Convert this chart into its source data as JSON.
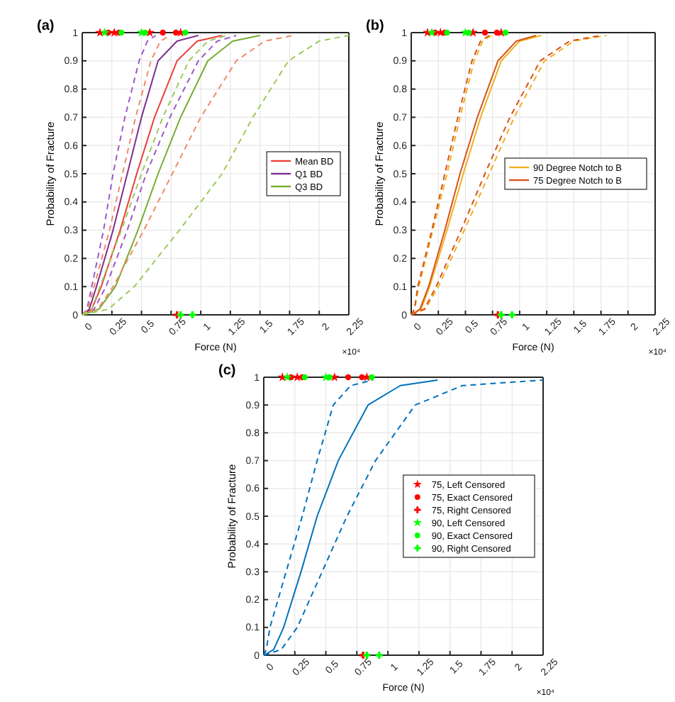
{
  "chart_data": [
    {
      "type": "line",
      "title": "(a)",
      "xlabel": "Force (N)",
      "ylabel": "Probability of Fracture",
      "annotations": [
        "×10⁴"
      ],
      "xlim": [
        0,
        2.25
      ],
      "xticks": [
        0,
        0.25,
        0.5,
        0.75,
        1,
        1.25,
        1.5,
        1.75,
        2,
        2.25
      ],
      "ylim": [
        0,
        1
      ],
      "yticks": [
        0,
        0.1,
        0.2,
        0.3,
        0.4,
        0.5,
        0.6,
        0.7,
        0.8,
        0.9,
        1
      ],
      "grid": true,
      "legend": "right",
      "series": [
        {
          "name": "Mean BD",
          "color": "#e8413c",
          "line_style": "solid",
          "x": [
            0,
            0.08,
            0.16,
            0.32,
            0.46,
            0.61,
            0.8,
            0.97,
            1.18
          ],
          "values": [
            0,
            0.02,
            0.1,
            0.3,
            0.5,
            0.7,
            0.9,
            0.97,
            0.99
          ]
        },
        {
          "name": "Q1 BD",
          "color": "#7e2f8e",
          "line_style": "solid",
          "x": [
            0,
            0.06,
            0.12,
            0.26,
            0.38,
            0.5,
            0.64,
            0.8,
            0.98
          ],
          "values": [
            0,
            0.02,
            0.1,
            0.3,
            0.5,
            0.7,
            0.9,
            0.97,
            0.99
          ]
        },
        {
          "name": "Q3 BD",
          "color": "#77ac30",
          "line_style": "solid",
          "x": [
            0,
            0.14,
            0.28,
            0.47,
            0.64,
            0.83,
            1.06,
            1.27,
            1.5
          ],
          "values": [
            0,
            0.02,
            0.1,
            0.3,
            0.5,
            0.7,
            0.9,
            0.97,
            0.99
          ]
        },
        {
          "color": "#9b59c9",
          "line_style": "dashed",
          "x": [
            0,
            0.04,
            0.08,
            0.18,
            0.26,
            0.36,
            0.48,
            0.55,
            0.62
          ],
          "values": [
            0,
            0.02,
            0.1,
            0.3,
            0.5,
            0.7,
            0.9,
            0.97,
            0.99
          ]
        },
        {
          "color": "#9b59c9",
          "line_style": "dashed",
          "x": [
            0,
            0.1,
            0.2,
            0.38,
            0.54,
            0.74,
            0.98,
            1.14,
            1.3
          ],
          "values": [
            0,
            0.02,
            0.1,
            0.3,
            0.5,
            0.7,
            0.9,
            0.97,
            0.99
          ]
        },
        {
          "color": "#f08a6a",
          "line_style": "dashed",
          "x": [
            0,
            0.05,
            0.1,
            0.23,
            0.34,
            0.45,
            0.58,
            0.66,
            0.74
          ],
          "values": [
            0,
            0.02,
            0.1,
            0.3,
            0.5,
            0.7,
            0.9,
            0.97,
            0.99
          ]
        },
        {
          "color": "#f08a6a",
          "line_style": "dashed",
          "x": [
            0,
            0.13,
            0.26,
            0.52,
            0.76,
            1.0,
            1.3,
            1.54,
            1.78
          ],
          "values": [
            0,
            0.02,
            0.1,
            0.3,
            0.5,
            0.7,
            0.9,
            0.97,
            0.99
          ]
        },
        {
          "color": "#9cc95a",
          "line_style": "dashed",
          "x": [
            0,
            0.08,
            0.15,
            0.33,
            0.5,
            0.68,
            0.9,
            1.06,
            1.22
          ],
          "values": [
            0,
            0.02,
            0.1,
            0.3,
            0.5,
            0.7,
            0.9,
            0.97,
            0.99
          ]
        },
        {
          "color": "#9cc95a",
          "line_style": "dashed",
          "x": [
            0,
            0.22,
            0.44,
            0.82,
            1.18,
            1.44,
            1.74,
            2.0,
            2.25
          ],
          "values": [
            0,
            0.02,
            0.1,
            0.3,
            0.5,
            0.7,
            0.9,
            0.97,
            0.99
          ]
        },
        {
          "type": "scatter",
          "color": "#ff0000",
          "marker": "star",
          "x": [
            0.15,
            0.27,
            0.57,
            0.83
          ],
          "values": [
            1,
            1,
            1,
            1
          ]
        },
        {
          "type": "scatter",
          "color": "#ff0000",
          "marker": "circle",
          "x": [
            0.22,
            0.31,
            0.68,
            0.79
          ],
          "values": [
            1,
            1,
            1,
            1
          ]
        },
        {
          "type": "scatter",
          "color": "#ff0000",
          "marker": "cross",
          "x": [
            0.8
          ],
          "values": [
            0
          ]
        },
        {
          "type": "scatter",
          "color": "#00ff00",
          "marker": "star",
          "x": [
            0.19,
            0.5
          ],
          "values": [
            1,
            1
          ]
        },
        {
          "type": "scatter",
          "color": "#00ff00",
          "marker": "circle",
          "x": [
            0.33,
            0.53,
            0.87
          ],
          "values": [
            1,
            1,
            1
          ]
        },
        {
          "type": "scatter",
          "color": "#00ff00",
          "marker": "cross",
          "x": [
            0.83,
            0.93
          ],
          "values": [
            0,
            0
          ]
        }
      ]
    },
    {
      "type": "line",
      "title": "(b)",
      "xlabel": "Force (N)",
      "ylabel": "Probability of Fracture",
      "annotations": [
        "×10⁴"
      ],
      "xlim": [
        0,
        2.25
      ],
      "xticks": [
        0,
        0.25,
        0.5,
        0.75,
        1,
        1.25,
        1.5,
        1.75,
        2,
        2.25
      ],
      "ylim": [
        0,
        1
      ],
      "yticks": [
        0,
        0.1,
        0.2,
        0.3,
        0.4,
        0.5,
        0.6,
        0.7,
        0.8,
        0.9,
        1
      ],
      "grid": true,
      "legend": "right",
      "series": [
        {
          "name": "90 Degree Notch to B",
          "color": "#edb120",
          "line_style": "solid",
          "x": [
            0,
            0.09,
            0.17,
            0.33,
            0.48,
            0.64,
            0.83,
            1.0,
            1.2
          ],
          "values": [
            0,
            0.02,
            0.1,
            0.3,
            0.5,
            0.7,
            0.9,
            0.97,
            0.99
          ]
        },
        {
          "name": "75 Degree Notch to B",
          "color": "#d95319",
          "line_style": "solid",
          "x": [
            0,
            0.08,
            0.16,
            0.31,
            0.45,
            0.61,
            0.8,
            0.97,
            1.15
          ],
          "values": [
            0,
            0.02,
            0.1,
            0.3,
            0.5,
            0.7,
            0.9,
            0.97,
            0.99
          ]
        },
        {
          "color": "#edb120",
          "line_style": "dashed",
          "x": [
            0,
            0.03,
            0.07,
            0.2,
            0.33,
            0.45,
            0.58,
            0.66,
            0.74
          ],
          "values": [
            0,
            0.02,
            0.1,
            0.3,
            0.5,
            0.7,
            0.9,
            0.97,
            0.99
          ]
        },
        {
          "color": "#d95319",
          "line_style": "dashed",
          "x": [
            0,
            0.03,
            0.06,
            0.19,
            0.31,
            0.43,
            0.56,
            0.64,
            0.72
          ],
          "values": [
            0,
            0.02,
            0.1,
            0.3,
            0.5,
            0.7,
            0.9,
            0.97,
            0.99
          ]
        },
        {
          "color": "#edb120",
          "line_style": "dashed",
          "x": [
            0,
            0.13,
            0.25,
            0.49,
            0.72,
            0.95,
            1.23,
            1.5,
            1.8
          ],
          "values": [
            0,
            0.02,
            0.1,
            0.3,
            0.5,
            0.7,
            0.9,
            0.97,
            0.99
          ]
        },
        {
          "color": "#d95319",
          "line_style": "dashed",
          "x": [
            0,
            0.12,
            0.23,
            0.46,
            0.68,
            0.91,
            1.19,
            1.46,
            1.75
          ],
          "values": [
            0,
            0.02,
            0.1,
            0.3,
            0.5,
            0.7,
            0.9,
            0.97,
            0.99
          ]
        },
        {
          "type": "scatter",
          "color": "#ff0000",
          "marker": "star",
          "x": [
            0.15,
            0.27,
            0.57,
            0.83
          ],
          "values": [
            1,
            1,
            1,
            1
          ]
        },
        {
          "type": "scatter",
          "color": "#ff0000",
          "marker": "circle",
          "x": [
            0.22,
            0.31,
            0.68,
            0.79
          ],
          "values": [
            1,
            1,
            1,
            1
          ]
        },
        {
          "type": "scatter",
          "color": "#ff0000",
          "marker": "cross",
          "x": [
            0.8
          ],
          "values": [
            0
          ]
        },
        {
          "type": "scatter",
          "color": "#00ff00",
          "marker": "star",
          "x": [
            0.19,
            0.5
          ],
          "values": [
            1,
            1
          ]
        },
        {
          "type": "scatter",
          "color": "#00ff00",
          "marker": "circle",
          "x": [
            0.33,
            0.53,
            0.87
          ],
          "values": [
            1,
            1,
            1
          ]
        },
        {
          "type": "scatter",
          "color": "#00ff00",
          "marker": "cross",
          "x": [
            0.83,
            0.93
          ],
          "values": [
            0,
            0
          ]
        }
      ]
    },
    {
      "type": "line",
      "title": "(c)",
      "xlabel": "Force (N)",
      "ylabel": "Probability of Fracture",
      "annotations": [
        "×10⁴"
      ],
      "xlim": [
        0,
        2.25
      ],
      "xticks": [
        0,
        0.25,
        0.5,
        0.75,
        1,
        1.25,
        1.5,
        1.75,
        2,
        2.25
      ],
      "ylim": [
        0,
        1
      ],
      "yticks": [
        0,
        0.1,
        0.2,
        0.3,
        0.4,
        0.5,
        0.6,
        0.7,
        0.8,
        0.9,
        1
      ],
      "grid": true,
      "legend": "right",
      "series": [
        {
          "color": "#0072bd",
          "line_style": "solid",
          "x": [
            0,
            0.08,
            0.16,
            0.3,
            0.43,
            0.6,
            0.84,
            1.1,
            1.4
          ],
          "values": [
            0,
            0.02,
            0.1,
            0.3,
            0.5,
            0.7,
            0.9,
            0.97,
            0.99
          ]
        },
        {
          "color": "#0072bd",
          "line_style": "dashed",
          "x": [
            0,
            0.02,
            0.05,
            0.18,
            0.31,
            0.43,
            0.56,
            0.7,
            0.88
          ],
          "values": [
            0,
            0.02,
            0.1,
            0.3,
            0.5,
            0.7,
            0.9,
            0.97,
            0.99
          ]
        },
        {
          "color": "#0072bd",
          "line_style": "dashed",
          "x": [
            0,
            0.14,
            0.27,
            0.47,
            0.67,
            0.9,
            1.22,
            1.6,
            2.25
          ],
          "values": [
            0,
            0.02,
            0.1,
            0.3,
            0.5,
            0.7,
            0.9,
            0.97,
            0.99
          ]
        },
        {
          "type": "scatter",
          "name": "75, Left Censored",
          "color": "#ff0000",
          "marker": "star",
          "x": [
            0.15,
            0.27,
            0.57,
            0.83
          ],
          "values": [
            1,
            1,
            1,
            1
          ]
        },
        {
          "type": "scatter",
          "name": "75, Exact Censored",
          "color": "#ff0000",
          "marker": "circle",
          "x": [
            0.22,
            0.31,
            0.68,
            0.79
          ],
          "values": [
            1,
            1,
            1,
            1
          ]
        },
        {
          "type": "scatter",
          "name": "75, Right Censored",
          "color": "#ff0000",
          "marker": "cross",
          "x": [
            0.8
          ],
          "values": [
            0
          ]
        },
        {
          "type": "scatter",
          "name": "90, Left Censored",
          "color": "#00ff00",
          "marker": "star",
          "x": [
            0.19,
            0.5
          ],
          "values": [
            1,
            1
          ]
        },
        {
          "type": "scatter",
          "name": "90, Exact Censored",
          "color": "#00ff00",
          "marker": "circle",
          "x": [
            0.33,
            0.53,
            0.87
          ],
          "values": [
            1,
            1,
            1
          ]
        },
        {
          "type": "scatter",
          "name": "90, Right Censored",
          "color": "#00ff00",
          "marker": "cross",
          "x": [
            0.83,
            0.93
          ],
          "values": [
            0,
            0
          ]
        }
      ]
    }
  ]
}
